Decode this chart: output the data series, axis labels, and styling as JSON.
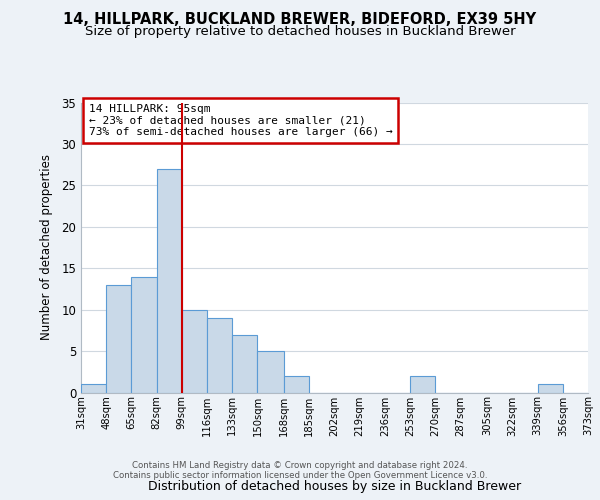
{
  "title": "14, HILLPARK, BUCKLAND BREWER, BIDEFORD, EX39 5HY",
  "subtitle": "Size of property relative to detached houses in Buckland Brewer",
  "xlabel": "Distribution of detached houses by size in Buckland Brewer",
  "ylabel": "Number of detached properties",
  "bin_labels": [
    "31sqm",
    "48sqm",
    "65sqm",
    "82sqm",
    "99sqm",
    "116sqm",
    "133sqm",
    "150sqm",
    "168sqm",
    "185sqm",
    "202sqm",
    "219sqm",
    "236sqm",
    "253sqm",
    "270sqm",
    "287sqm",
    "305sqm",
    "322sqm",
    "339sqm",
    "356sqm",
    "373sqm"
  ],
  "bar_heights": [
    1,
    13,
    14,
    27,
    10,
    9,
    7,
    5,
    2,
    0,
    0,
    0,
    0,
    2,
    0,
    0,
    0,
    0,
    1,
    0
  ],
  "bin_edges": [
    31,
    48,
    65,
    82,
    99,
    116,
    133,
    150,
    168,
    185,
    202,
    219,
    236,
    253,
    270,
    287,
    305,
    322,
    339,
    356,
    373
  ],
  "bar_color": "#c9d9e8",
  "bar_edge_color": "#5b9bd5",
  "vline_x": 99,
  "vline_color": "#cc0000",
  "annotation_text": "14 HILLPARK: 95sqm\n← 23% of detached houses are smaller (21)\n73% of semi-detached houses are larger (66) →",
  "annotation_box_edge_color": "#cc0000",
  "ylim": [
    0,
    35
  ],
  "yticks": [
    0,
    5,
    10,
    15,
    20,
    25,
    30,
    35
  ],
  "background_color": "#edf2f7",
  "plot_bg_color": "#ffffff",
  "footer_line1": "Contains HM Land Registry data © Crown copyright and database right 2024.",
  "footer_line2": "Contains public sector information licensed under the Open Government Licence v3.0.",
  "title_fontsize": 10.5,
  "subtitle_fontsize": 9.5,
  "grid_color": "#d0d8e0"
}
